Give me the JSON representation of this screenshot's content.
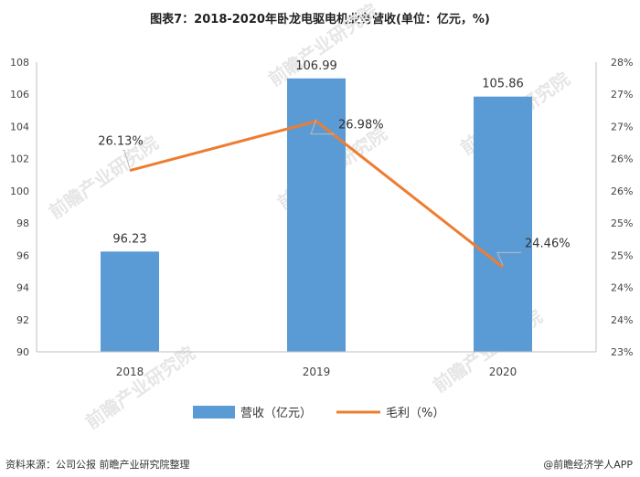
{
  "header": {
    "title": "图表7：2018-2020年卧龙电驱电机业务营收(单位：亿元，%)"
  },
  "footer": {
    "source": "资料来源：公司公报 前瞻产业研究院整理",
    "brand": "@前瞻经济学人APP"
  },
  "watermark": {
    "text": "前瞻产业研究院"
  },
  "colors": {
    "bar": "#5b9bd5",
    "line": "#ed7d31",
    "axis": "#bfbfbf"
  },
  "chart_data": {
    "type": "bar+line",
    "categories": [
      "2018",
      "2019",
      "2020"
    ],
    "series": [
      {
        "name": "营收（亿元）",
        "type": "bar",
        "axis": "left",
        "values": [
          96.23,
          106.99,
          105.86
        ],
        "labels": [
          "96.23",
          "106.99",
          "105.86"
        ]
      },
      {
        "name": "毛利（%）",
        "type": "line",
        "axis": "right",
        "values": [
          26.13,
          26.98,
          24.46
        ],
        "labels": [
          "26.13%",
          "26.98%",
          "24.46%"
        ]
      }
    ],
    "ylim_left": [
      90,
      108
    ],
    "yticks_left": [
      "90",
      "92",
      "94",
      "96",
      "98",
      "100",
      "102",
      "104",
      "106",
      "108"
    ],
    "ylim_right": [
      23,
      28
    ],
    "yticks_right": [
      "23%",
      "24%",
      "24%",
      "25%",
      "25%",
      "26%",
      "26%",
      "27%",
      "27%",
      "28%"
    ],
    "legend_position": "bottom"
  }
}
